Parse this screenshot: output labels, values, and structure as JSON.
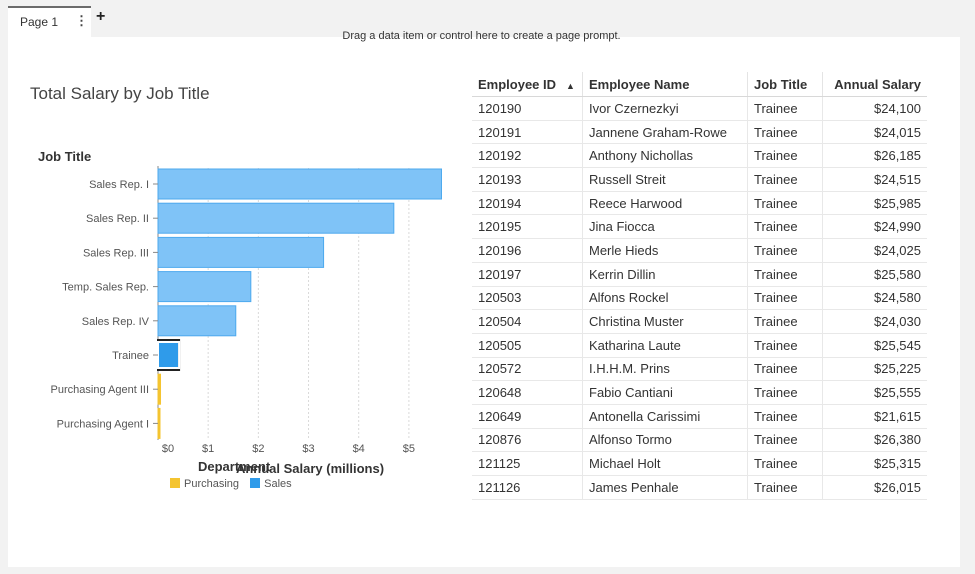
{
  "tabs": {
    "page_label": "Page 1",
    "menu_icon": "vertical-ellipsis-icon",
    "add_icon": "plus-icon"
  },
  "page_prompt": "Drag a data item or control here to create a page prompt.",
  "chart": {
    "title": "Total Salary by Job Title"
  },
  "chart_data": {
    "type": "bar",
    "orientation": "horizontal",
    "title": "Total Salary by Job Title",
    "ylabel": "Job Title",
    "xlabel": "Annual Salary (millions)",
    "xlim": [
      0,
      5.7
    ],
    "x_ticks": [
      "$0",
      "$1",
      "$2",
      "$3",
      "$4",
      "$5"
    ],
    "grid": true,
    "legend_title": "Department",
    "legend_placement": "bottom",
    "categories": [
      "Sales Rep. I",
      "Sales Rep. II",
      "Sales Rep. III",
      "Temp. Sales Rep.",
      "Sales Rep. IV",
      "Trainee",
      "Purchasing Agent III",
      "Purchasing Agent I"
    ],
    "values": [
      5.65,
      4.7,
      3.3,
      1.85,
      1.55,
      0.42,
      0.05,
      0.03
    ],
    "departments": [
      "Sales",
      "Sales",
      "Sales",
      "Sales",
      "Sales",
      "Sales",
      "Purchasing",
      "Purchasing"
    ],
    "selected": "Trainee",
    "series": [
      {
        "name": "Purchasing",
        "color": "#f4c430"
      },
      {
        "name": "Sales",
        "color": "#2f9bea"
      }
    ]
  },
  "table": {
    "columns": [
      "Employee ID",
      "Employee Name",
      "Job Title",
      "Annual Salary"
    ],
    "sort_indicator": "▲",
    "rows": [
      [
        "120190",
        "Ivor Czernezkyi",
        "Trainee",
        "$24,100"
      ],
      [
        "120191",
        "Jannene Graham-Rowe",
        "Trainee",
        "$24,015"
      ],
      [
        "120192",
        "Anthony Nichollas",
        "Trainee",
        "$26,185"
      ],
      [
        "120193",
        "Russell Streit",
        "Trainee",
        "$24,515"
      ],
      [
        "120194",
        "Reece Harwood",
        "Trainee",
        "$25,985"
      ],
      [
        "120195",
        "Jina Fiocca",
        "Trainee",
        "$24,990"
      ],
      [
        "120196",
        "Merle Hieds",
        "Trainee",
        "$24,025"
      ],
      [
        "120197",
        "Kerrin Dillin",
        "Trainee",
        "$25,580"
      ],
      [
        "120503",
        "Alfons Rockel",
        "Trainee",
        "$24,580"
      ],
      [
        "120504",
        "Christina Muster",
        "Trainee",
        "$24,030"
      ],
      [
        "120505",
        "Katharina Laute",
        "Trainee",
        "$25,545"
      ],
      [
        "120572",
        "I.H.H.M. Prins",
        "Trainee",
        "$25,225"
      ],
      [
        "120648",
        "Fabio Cantiani",
        "Trainee",
        "$25,555"
      ],
      [
        "120649",
        "Antonella Carissimi",
        "Trainee",
        "$21,615"
      ],
      [
        "120876",
        "Alfonso Tormo",
        "Trainee",
        "$26,380"
      ],
      [
        "121125",
        "Michael Holt",
        "Trainee",
        "$25,315"
      ],
      [
        "121126",
        "James Penhale",
        "Trainee",
        "$26,015"
      ]
    ]
  }
}
